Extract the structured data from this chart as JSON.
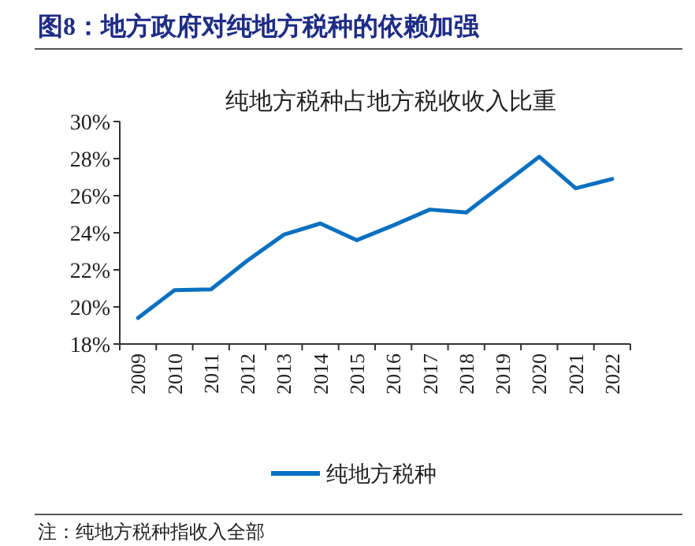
{
  "chart_data": {
    "type": "line",
    "title": "图8：地方政府对纯地方税种的依赖加强",
    "subtitle": "纯地方税种占地方税收收入比重",
    "categories": [
      "2009",
      "2010",
      "2011",
      "2012",
      "2013",
      "2014",
      "2015",
      "2016",
      "2017",
      "2018",
      "2019",
      "2020",
      "2021",
      "2022"
    ],
    "series": [
      {
        "name": "纯地方税种",
        "color": "#0a70c0",
        "values": [
          19.4,
          20.9,
          20.95,
          22.5,
          23.9,
          24.5,
          23.6,
          24.4,
          25.25,
          25.1,
          26.6,
          28.1,
          26.4,
          26.9
        ]
      }
    ],
    "ylim": [
      18,
      30
    ],
    "yticks": [
      {
        "value": 18,
        "label": "18%"
      },
      {
        "value": 20,
        "label": "20%"
      },
      {
        "value": 22,
        "label": "22%"
      },
      {
        "value": 24,
        "label": "24%"
      },
      {
        "value": 26,
        "label": "26%"
      },
      {
        "value": 28,
        "label": "28%"
      },
      {
        "value": 30,
        "label": "30%"
      }
    ],
    "legend": "bottom",
    "grid": false,
    "marker": "none",
    "line_style": "solid",
    "annotations": [
      "注：纯地方税种指收入全部"
    ]
  }
}
